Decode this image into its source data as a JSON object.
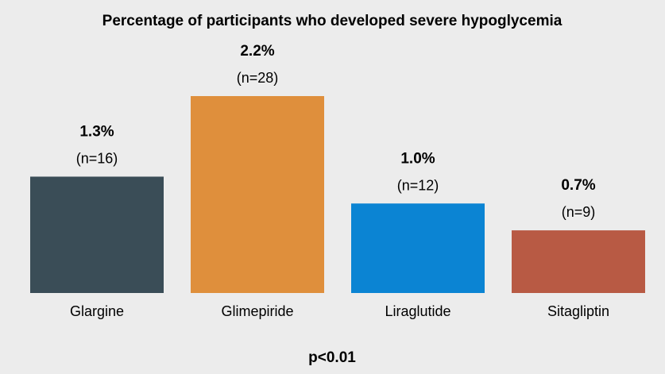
{
  "chart_data": {
    "type": "bar",
    "title": "Percentage of participants who developed severe hypoglycemia",
    "categories": [
      "Glargine",
      "Glimepiride",
      "Liraglutide",
      "Sitagliptin"
    ],
    "values": [
      1.3,
      2.2,
      1.0,
      0.7
    ],
    "value_labels": [
      "1.3%",
      "2.2%",
      "1.0%",
      "0.7%"
    ],
    "count_labels": [
      "(n=16)",
      "(n=28)",
      "(n=12)",
      "(n=9)"
    ],
    "colors": [
      "#3a4d57",
      "#df8f3c",
      "#0b84d3",
      "#b85a44"
    ],
    "ylim": [
      0,
      2.2
    ],
    "annotation": "p<0.01",
    "grid": false,
    "legend": "none"
  }
}
